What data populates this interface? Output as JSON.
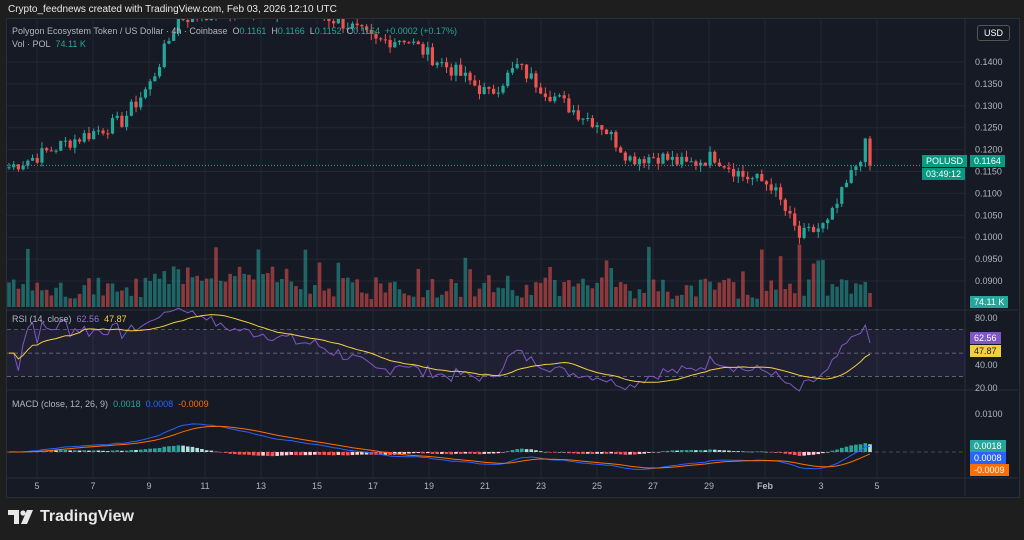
{
  "header": {
    "attribution": "Crypto_feednews created with TradingView.com, Feb 03, 2026 12:10 UTC",
    "currency": "USD"
  },
  "legend": {
    "symbol": "Polygon Ecosystem Token / US Dollar · 4h · Coinbase",
    "o_label": "O",
    "o": "0.1161",
    "h_label": "H",
    "h": "0.1166",
    "l_label": "L",
    "l": "0.1152",
    "c_label": "C",
    "c": "0.1164",
    "change": "+0.0002 (+0.17%)",
    "vol_label": "Vol · POL",
    "vol": "74.11 K"
  },
  "rsi": {
    "label": "RSI (14, close)",
    "value": "62.56",
    "ma": "47.87",
    "ticks": [
      "80.00",
      "40.00",
      "20.00"
    ]
  },
  "macd": {
    "label": "MACD (close, 12, 26, 9)",
    "hist": "0.0018",
    "macd": "0.0008",
    "signal": "-0.0009",
    "ticks": [
      "0.0100"
    ]
  },
  "price_tag": {
    "symbol": "POLUSD",
    "price": "0.1164",
    "countdown": "03:49:12",
    "volume": "74.11 K"
  },
  "footer": {
    "brand": "TradingView"
  },
  "colors": {
    "up": "#26a69a",
    "down": "#ef5350",
    "rsi": "#7e57c2",
    "rsi_ma": "#f2d03d",
    "macd": "#2962ff",
    "signal": "#ff6d00",
    "bg": "#161a25"
  },
  "chart_data": {
    "type": "candlestick",
    "timeframe": "4h",
    "price_ticks": [
      "0.1400",
      "0.1350",
      "0.1300",
      "0.1250",
      "0.1200",
      "0.1150",
      "0.1100",
      "0.1050",
      "0.1000",
      "0.0950",
      "0.0900"
    ],
    "ylim": [
      0.0875,
      0.1505
    ],
    "x_ticks": [
      "5",
      "7",
      "9",
      "11",
      "13",
      "15",
      "17",
      "19",
      "21",
      "23",
      "25",
      "27",
      "29",
      "Feb",
      "3",
      "5"
    ],
    "daily_close_approx": {
      "dates": [
        "Jan 4",
        "Jan 5",
        "Jan 6",
        "Jan 7",
        "Jan 8",
        "Jan 9",
        "Jan 10",
        "Jan 11",
        "Jan 12",
        "Jan 13",
        "Jan 14",
        "Jan 15",
        "Jan 16",
        "Jan 17",
        "Jan 18",
        "Jan 19",
        "Jan 20",
        "Jan 21",
        "Jan 22",
        "Jan 23",
        "Jan 24",
        "Jan 25",
        "Jan 26",
        "Jan 27",
        "Jan 28",
        "Jan 29",
        "Jan 30",
        "Jan 31",
        "Feb 1",
        "Feb 2",
        "Feb 3"
      ],
      "values": [
        0.116,
        0.1185,
        0.1215,
        0.124,
        0.1265,
        0.135,
        0.15,
        0.151,
        0.1515,
        0.152,
        0.1515,
        0.151,
        0.1485,
        0.1445,
        0.1455,
        0.141,
        0.137,
        0.1325,
        0.139,
        0.1335,
        0.129,
        0.1255,
        0.118,
        0.1185,
        0.1165,
        0.1185,
        0.114,
        0.112,
        0.1,
        0.103,
        0.1164
      ]
    }
  }
}
